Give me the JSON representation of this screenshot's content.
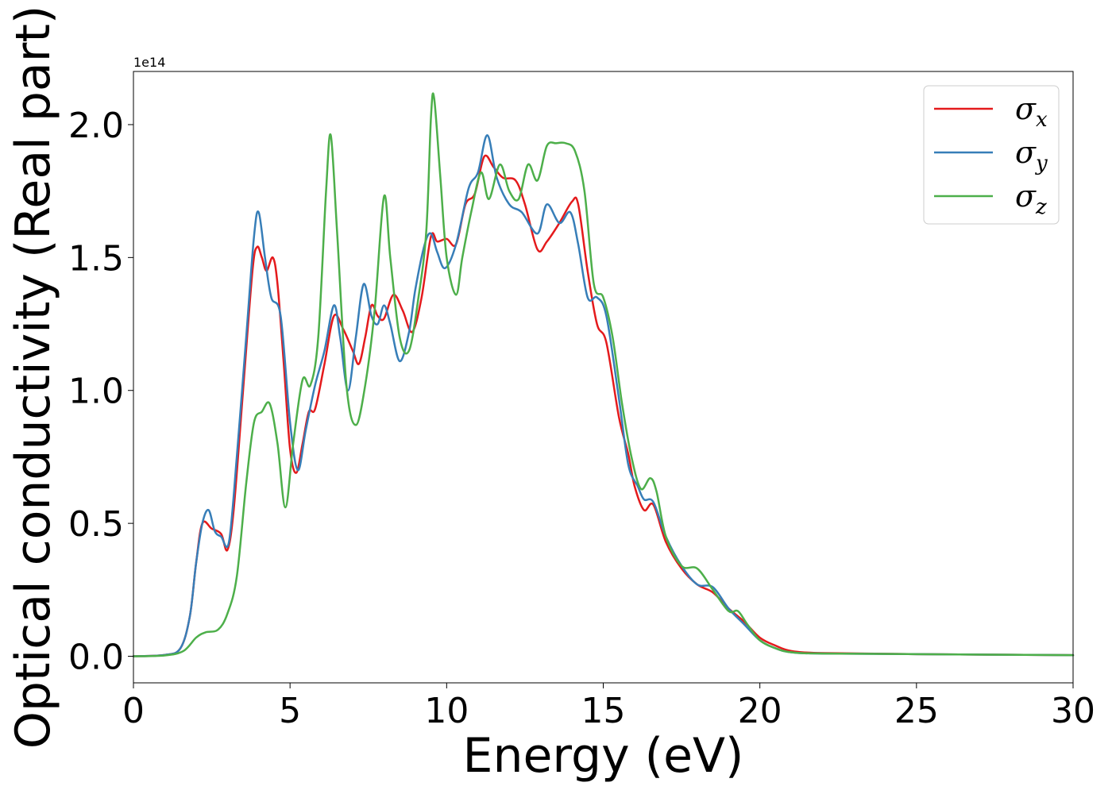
{
  "chart_data": {
    "type": "line",
    "title": "",
    "xlabel": "Energy (eV)",
    "ylabel": "Optical conductivity (Real part)",
    "y_offset_text": "1e14",
    "xlim": [
      0,
      30
    ],
    "ylim": [
      -0.1,
      2.2
    ],
    "x_ticks": [
      0,
      5,
      10,
      15,
      20,
      25,
      30
    ],
    "x_tick_labels": [
      "0",
      "5",
      "10",
      "15",
      "20",
      "25",
      "30"
    ],
    "y_ticks": [
      0.0,
      0.5,
      1.0,
      1.5,
      2.0
    ],
    "y_tick_labels": [
      "0.0",
      "0.5",
      "1.0",
      "1.5",
      "2.0"
    ],
    "grid": false,
    "legend_position": "top-right",
    "series": [
      {
        "name": "σx",
        "legend_base": "σ",
        "legend_sub": "x",
        "color": "#e41a1c",
        "points": [
          [
            0,
            0
          ],
          [
            1,
            0.005
          ],
          [
            1.5,
            0.03
          ],
          [
            1.8,
            0.15
          ],
          [
            2.0,
            0.35
          ],
          [
            2.2,
            0.5
          ],
          [
            2.5,
            0.48
          ],
          [
            2.8,
            0.46
          ],
          [
            3.0,
            0.4
          ],
          [
            3.2,
            0.55
          ],
          [
            3.5,
            1.0
          ],
          [
            3.8,
            1.45
          ],
          [
            3.95,
            1.54
          ],
          [
            4.1,
            1.5
          ],
          [
            4.25,
            1.45
          ],
          [
            4.45,
            1.5
          ],
          [
            4.6,
            1.4
          ],
          [
            4.8,
            1.1
          ],
          [
            5.0,
            0.78
          ],
          [
            5.2,
            0.69
          ],
          [
            5.4,
            0.8
          ],
          [
            5.6,
            0.92
          ],
          [
            5.8,
            0.93
          ],
          [
            6.1,
            1.1
          ],
          [
            6.4,
            1.28
          ],
          [
            6.7,
            1.23
          ],
          [
            7.0,
            1.15
          ],
          [
            7.2,
            1.1
          ],
          [
            7.4,
            1.2
          ],
          [
            7.6,
            1.32
          ],
          [
            7.8,
            1.28
          ],
          [
            8.0,
            1.27
          ],
          [
            8.3,
            1.36
          ],
          [
            8.6,
            1.3
          ],
          [
            8.9,
            1.22
          ],
          [
            9.2,
            1.35
          ],
          [
            9.5,
            1.58
          ],
          [
            9.7,
            1.56
          ],
          [
            10.0,
            1.57
          ],
          [
            10.3,
            1.55
          ],
          [
            10.6,
            1.7
          ],
          [
            10.9,
            1.74
          ],
          [
            11.2,
            1.88
          ],
          [
            11.5,
            1.84
          ],
          [
            11.8,
            1.8
          ],
          [
            12.2,
            1.79
          ],
          [
            12.5,
            1.7
          ],
          [
            12.9,
            1.53
          ],
          [
            13.2,
            1.56
          ],
          [
            13.6,
            1.63
          ],
          [
            14.0,
            1.71
          ],
          [
            14.2,
            1.7
          ],
          [
            14.5,
            1.45
          ],
          [
            14.8,
            1.25
          ],
          [
            15.1,
            1.18
          ],
          [
            15.5,
            0.9
          ],
          [
            15.8,
            0.76
          ],
          [
            16.0,
            0.64
          ],
          [
            16.3,
            0.55
          ],
          [
            16.6,
            0.57
          ],
          [
            17.0,
            0.43
          ],
          [
            17.5,
            0.33
          ],
          [
            18.0,
            0.27
          ],
          [
            18.5,
            0.24
          ],
          [
            19.0,
            0.18
          ],
          [
            19.5,
            0.13
          ],
          [
            20.0,
            0.07
          ],
          [
            20.5,
            0.04
          ],
          [
            21.0,
            0.02
          ],
          [
            22.0,
            0.012
          ],
          [
            25.0,
            0.008
          ],
          [
            30.0,
            0.004
          ]
        ]
      },
      {
        "name": "σy",
        "legend_base": "σ",
        "legend_sub": "y",
        "color": "#377eb8",
        "points": [
          [
            0,
            0
          ],
          [
            1,
            0.005
          ],
          [
            1.5,
            0.03
          ],
          [
            1.8,
            0.15
          ],
          [
            2.0,
            0.35
          ],
          [
            2.2,
            0.5
          ],
          [
            2.4,
            0.55
          ],
          [
            2.6,
            0.47
          ],
          [
            2.8,
            0.45
          ],
          [
            3.05,
            0.43
          ],
          [
            3.3,
            0.75
          ],
          [
            3.6,
            1.2
          ],
          [
            3.85,
            1.58
          ],
          [
            4.0,
            1.67
          ],
          [
            4.2,
            1.5
          ],
          [
            4.4,
            1.35
          ],
          [
            4.7,
            1.28
          ],
          [
            5.0,
            0.88
          ],
          [
            5.25,
            0.7
          ],
          [
            5.5,
            0.85
          ],
          [
            5.8,
            1.02
          ],
          [
            6.1,
            1.15
          ],
          [
            6.4,
            1.32
          ],
          [
            6.6,
            1.2
          ],
          [
            6.85,
            1.0
          ],
          [
            7.1,
            1.2
          ],
          [
            7.35,
            1.4
          ],
          [
            7.6,
            1.28
          ],
          [
            7.8,
            1.25
          ],
          [
            8.0,
            1.32
          ],
          [
            8.2,
            1.25
          ],
          [
            8.5,
            1.11
          ],
          [
            8.8,
            1.22
          ],
          [
            9.0,
            1.38
          ],
          [
            9.3,
            1.55
          ],
          [
            9.5,
            1.59
          ],
          [
            9.7,
            1.52
          ],
          [
            9.95,
            1.46
          ],
          [
            10.3,
            1.55
          ],
          [
            10.7,
            1.76
          ],
          [
            11.0,
            1.82
          ],
          [
            11.3,
            1.96
          ],
          [
            11.6,
            1.8
          ],
          [
            12.0,
            1.7
          ],
          [
            12.4,
            1.67
          ],
          [
            12.9,
            1.59
          ],
          [
            13.2,
            1.7
          ],
          [
            13.6,
            1.63
          ],
          [
            13.95,
            1.67
          ],
          [
            14.2,
            1.55
          ],
          [
            14.5,
            1.35
          ],
          [
            14.8,
            1.35
          ],
          [
            15.1,
            1.28
          ],
          [
            15.5,
            0.97
          ],
          [
            15.8,
            0.72
          ],
          [
            16.1,
            0.64
          ],
          [
            16.3,
            0.59
          ],
          [
            16.6,
            0.58
          ],
          [
            17.0,
            0.45
          ],
          [
            17.5,
            0.34
          ],
          [
            18.0,
            0.27
          ],
          [
            18.5,
            0.26
          ],
          [
            19.0,
            0.18
          ],
          [
            19.5,
            0.12
          ],
          [
            20.0,
            0.06
          ],
          [
            20.5,
            0.03
          ],
          [
            21.0,
            0.015
          ],
          [
            22.0,
            0.01
          ],
          [
            25.0,
            0.008
          ],
          [
            30.0,
            0.004
          ]
        ]
      },
      {
        "name": "σz",
        "legend_base": "σ",
        "legend_sub": "z",
        "color": "#4daf4a",
        "points": [
          [
            0,
            0
          ],
          [
            1,
            0.003
          ],
          [
            1.6,
            0.02
          ],
          [
            2.0,
            0.07
          ],
          [
            2.3,
            0.09
          ],
          [
            2.7,
            0.1
          ],
          [
            3.0,
            0.16
          ],
          [
            3.3,
            0.3
          ],
          [
            3.6,
            0.65
          ],
          [
            3.85,
            0.88
          ],
          [
            4.1,
            0.92
          ],
          [
            4.35,
            0.95
          ],
          [
            4.6,
            0.8
          ],
          [
            4.85,
            0.56
          ],
          [
            5.1,
            0.8
          ],
          [
            5.4,
            1.04
          ],
          [
            5.65,
            1.02
          ],
          [
            5.9,
            1.2
          ],
          [
            6.15,
            1.75
          ],
          [
            6.3,
            1.96
          ],
          [
            6.5,
            1.6
          ],
          [
            6.8,
            1.02
          ],
          [
            7.1,
            0.87
          ],
          [
            7.4,
            1.02
          ],
          [
            7.7,
            1.3
          ],
          [
            8.0,
            1.73
          ],
          [
            8.2,
            1.5
          ],
          [
            8.5,
            1.2
          ],
          [
            8.8,
            1.15
          ],
          [
            9.1,
            1.35
          ],
          [
            9.35,
            1.6
          ],
          [
            9.5,
            2.03
          ],
          [
            9.6,
            2.1
          ],
          [
            9.8,
            1.8
          ],
          [
            10.0,
            1.5
          ],
          [
            10.3,
            1.36
          ],
          [
            10.5,
            1.5
          ],
          [
            10.8,
            1.68
          ],
          [
            11.1,
            1.82
          ],
          [
            11.35,
            1.72
          ],
          [
            11.7,
            1.85
          ],
          [
            12.0,
            1.75
          ],
          [
            12.3,
            1.72
          ],
          [
            12.6,
            1.85
          ],
          [
            12.9,
            1.79
          ],
          [
            13.2,
            1.92
          ],
          [
            13.5,
            1.93
          ],
          [
            13.8,
            1.93
          ],
          [
            14.1,
            1.9
          ],
          [
            14.4,
            1.75
          ],
          [
            14.7,
            1.4
          ],
          [
            15.0,
            1.35
          ],
          [
            15.3,
            1.2
          ],
          [
            15.6,
            0.95
          ],
          [
            15.9,
            0.75
          ],
          [
            16.2,
            0.63
          ],
          [
            16.5,
            0.67
          ],
          [
            16.7,
            0.62
          ],
          [
            17.0,
            0.45
          ],
          [
            17.5,
            0.34
          ],
          [
            18.0,
            0.33
          ],
          [
            18.5,
            0.25
          ],
          [
            19.0,
            0.17
          ],
          [
            19.3,
            0.17
          ],
          [
            19.6,
            0.12
          ],
          [
            20.0,
            0.06
          ],
          [
            20.5,
            0.03
          ],
          [
            21.0,
            0.015
          ],
          [
            22.0,
            0.01
          ],
          [
            25.0,
            0.008
          ],
          [
            30.0,
            0.004
          ]
        ]
      }
    ]
  }
}
